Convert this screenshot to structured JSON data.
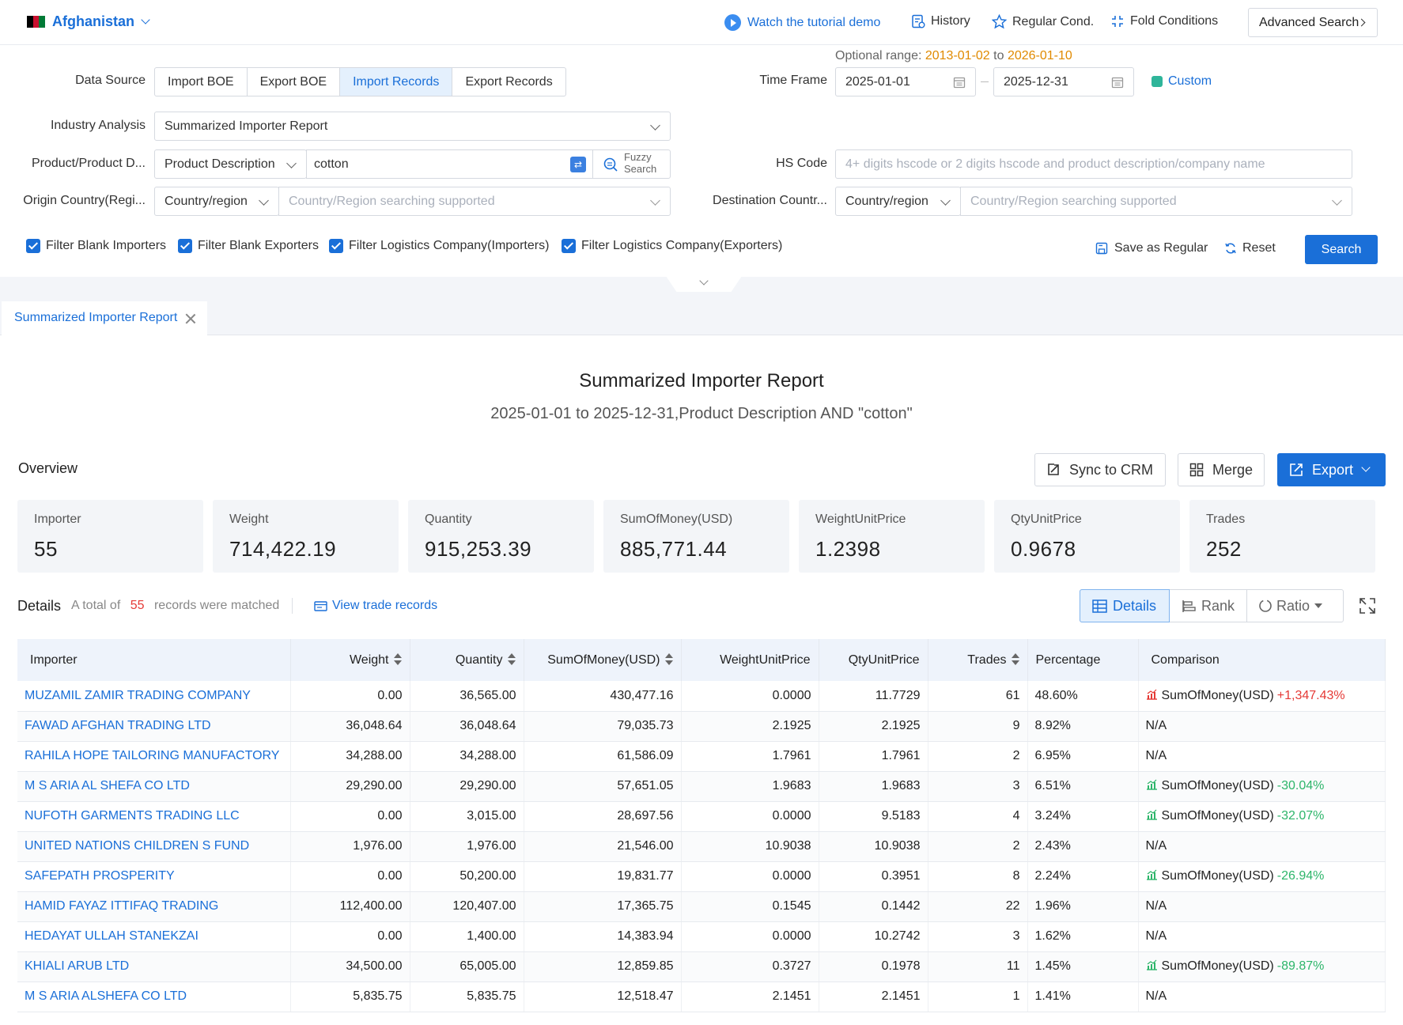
{
  "header": {
    "country": "Afghanistan",
    "tutorial": "Watch the tutorial demo",
    "history": "History",
    "regular": "Regular Cond.",
    "fold": "Fold Conditions",
    "advanced": "Advanced Search"
  },
  "filters": {
    "data_source_label": "Data Source",
    "data_sources": [
      "Import BOE",
      "Export BOE",
      "Import Records",
      "Export Records"
    ],
    "data_source_selected": "Import Records",
    "optional_range_label": "Optional range:",
    "optional_range_start": "2013-01-02",
    "optional_range_to": "to",
    "optional_range_end": "2026-01-10",
    "time_frame_label": "Time Frame",
    "time_start": "2025-01-01",
    "time_end": "2025-12-31",
    "custom": "Custom",
    "industry_label": "Industry Analysis",
    "industry_value": "Summarized Importer Report",
    "product_label": "Product/Product D...",
    "product_type": "Product Description",
    "product_value": "cotton",
    "fuzzy_line1": "Fuzzy",
    "fuzzy_line2": "Search",
    "hs_label": "HS Code",
    "hs_placeholder": "4+ digits hscode or 2 digits hscode and product description/company name",
    "origin_label": "Origin Country(Regi...",
    "origin_type": "Country/region",
    "origin_placeholder": "Country/Region searching supported",
    "dest_label": "Destination Countr...",
    "dest_type": "Country/region",
    "dest_placeholder": "Country/Region searching supported",
    "checkboxes": [
      "Filter Blank Importers",
      "Filter Blank Exporters",
      "Filter Logistics Company(Importers)",
      "Filter Logistics Company(Exporters)"
    ],
    "save_regular": "Save as Regular",
    "reset": "Reset",
    "search": "Search"
  },
  "tab": {
    "label": "Summarized Importer Report"
  },
  "report": {
    "title": "Summarized Importer Report",
    "subtitle": "2025-01-01 to 2025-12-31,Product Description AND \"cotton\""
  },
  "overview": {
    "label": "Overview",
    "sync": "Sync to CRM",
    "merge": "Merge",
    "export": "Export",
    "cards": [
      {
        "title": "Importer",
        "value": "55"
      },
      {
        "title": "Weight",
        "value": "714,422.19"
      },
      {
        "title": "Quantity",
        "value": "915,253.39"
      },
      {
        "title": "SumOfMoney(USD)",
        "value": "885,771.44"
      },
      {
        "title": "WeightUnitPrice",
        "value": "1.2398"
      },
      {
        "title": "QtyUnitPrice",
        "value": "0.9678"
      },
      {
        "title": "Trades",
        "value": "252"
      }
    ]
  },
  "details": {
    "label": "Details",
    "total_prefix": "A total of",
    "total_count": "55",
    "total_suffix": "records were matched",
    "view_trade": "View trade records",
    "view_details": "Details",
    "view_rank": "Rank",
    "view_ratio": "Ratio"
  },
  "table": {
    "columns": [
      "Importer",
      "Weight",
      "Quantity",
      "SumOfMoney(USD)",
      "WeightUnitPrice",
      "QtyUnitPrice",
      "Trades",
      "Percentage",
      "Comparison"
    ],
    "rows": [
      {
        "importer": "MUZAMIL ZAMIR TRADING COMPANY",
        "weight": "0.00",
        "quantity": "36,565.00",
        "money": "430,477.16",
        "wup": "0.0000",
        "qup": "11.7729",
        "trades": "61",
        "pct": "48.60%",
        "cmp_label": "SumOfMoney(USD)",
        "cmp_value": "+1,347.43%",
        "cmp_dir": "up"
      },
      {
        "importer": "FAWAD AFGHAN TRADING LTD",
        "weight": "36,048.64",
        "quantity": "36,048.64",
        "money": "79,035.73",
        "wup": "2.1925",
        "qup": "2.1925",
        "trades": "9",
        "pct": "8.92%",
        "cmp_label": "N/A",
        "cmp_value": "",
        "cmp_dir": "none"
      },
      {
        "importer": "RAHILA HOPE TAILORING MANUFACTORY",
        "weight": "34,288.00",
        "quantity": "34,288.00",
        "money": "61,586.09",
        "wup": "1.7961",
        "qup": "1.7961",
        "trades": "2",
        "pct": "6.95%",
        "cmp_label": "N/A",
        "cmp_value": "",
        "cmp_dir": "none"
      },
      {
        "importer": "M S ARIA AL SHEFA CO LTD",
        "weight": "29,290.00",
        "quantity": "29,290.00",
        "money": "57,651.05",
        "wup": "1.9683",
        "qup": "1.9683",
        "trades": "3",
        "pct": "6.51%",
        "cmp_label": "SumOfMoney(USD)",
        "cmp_value": "-30.04%",
        "cmp_dir": "down"
      },
      {
        "importer": "NUFOTH GARMENTS TRADING LLC",
        "weight": "0.00",
        "quantity": "3,015.00",
        "money": "28,697.56",
        "wup": "0.0000",
        "qup": "9.5183",
        "trades": "4",
        "pct": "3.24%",
        "cmp_label": "SumOfMoney(USD)",
        "cmp_value": "-32.07%",
        "cmp_dir": "down"
      },
      {
        "importer": "UNITED NATIONS CHILDREN S FUND",
        "weight": "1,976.00",
        "quantity": "1,976.00",
        "money": "21,546.00",
        "wup": "10.9038",
        "qup": "10.9038",
        "trades": "2",
        "pct": "2.43%",
        "cmp_label": "N/A",
        "cmp_value": "",
        "cmp_dir": "none"
      },
      {
        "importer": "SAFEPATH PROSPERITY",
        "weight": "0.00",
        "quantity": "50,200.00",
        "money": "19,831.77",
        "wup": "0.0000",
        "qup": "0.3951",
        "trades": "8",
        "pct": "2.24%",
        "cmp_label": "SumOfMoney(USD)",
        "cmp_value": "-26.94%",
        "cmp_dir": "down"
      },
      {
        "importer": "HAMID FAYAZ ITTIFAQ TRADING",
        "weight": "112,400.00",
        "quantity": "120,407.00",
        "money": "17,365.75",
        "wup": "0.1545",
        "qup": "0.1442",
        "trades": "22",
        "pct": "1.96%",
        "cmp_label": "N/A",
        "cmp_value": "",
        "cmp_dir": "none"
      },
      {
        "importer": "HEDAYAT ULLAH STANEKZAI",
        "weight": "0.00",
        "quantity": "1,400.00",
        "money": "14,383.94",
        "wup": "0.0000",
        "qup": "10.2742",
        "trades": "3",
        "pct": "1.62%",
        "cmp_label": "N/A",
        "cmp_value": "",
        "cmp_dir": "none"
      },
      {
        "importer": "KHIALI ARUB LTD",
        "weight": "34,500.00",
        "quantity": "65,005.00",
        "money": "12,859.85",
        "wup": "0.3727",
        "qup": "0.1978",
        "trades": "11",
        "pct": "1.45%",
        "cmp_label": "SumOfMoney(USD)",
        "cmp_value": "-89.87%",
        "cmp_dir": "down"
      },
      {
        "importer": "M S ARIA ALSHEFA CO LTD",
        "weight": "5,835.75",
        "quantity": "5,835.75",
        "money": "12,518.47",
        "wup": "2.1451",
        "qup": "2.1451",
        "trades": "1",
        "pct": "1.41%",
        "cmp_label": "N/A",
        "cmp_value": "",
        "cmp_dir": "none"
      }
    ]
  },
  "colors": {
    "accent": "#1a6fd8",
    "warning": "#e08a00",
    "up": "#e53935",
    "down": "#2db56a"
  }
}
